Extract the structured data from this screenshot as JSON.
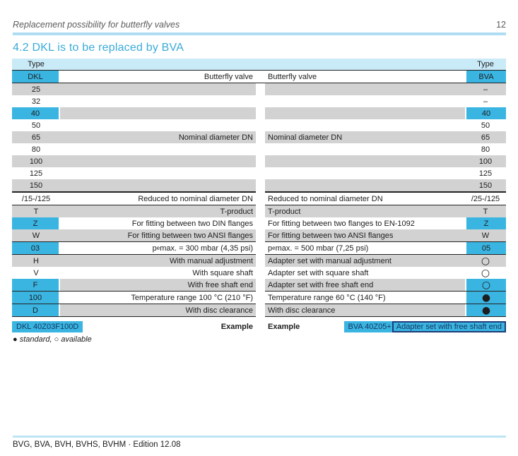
{
  "page": {
    "header_title": "Replacement possibility for butterfly valves",
    "page_number": "12",
    "section_title": "4.2 DKL is to be replaced by BVA",
    "legend": "● standard, ○ available",
    "footer": "BVG, BVA, BVH, BVHS, BVHM · Edition 12.08"
  },
  "colors": {
    "accent_cyan": "#3ab5e2",
    "header_band": "#c9eaf7",
    "row_gray": "#d2d2d2",
    "divider_blue": "#aedcf2",
    "navy": "#1f3c78",
    "title_cyan": "#39abda"
  },
  "table": {
    "left_header": "Type",
    "right_header": "Type",
    "head": {
      "left_type": "DKL",
      "left_desc": "Butterfly valve",
      "right_desc": "Butterfly valve",
      "right_type": "BVA"
    },
    "rows": [
      {
        "left_type": "25",
        "left_desc": "",
        "right_desc": "",
        "right_type": "–",
        "shade": "gray"
      },
      {
        "left_type": "32",
        "left_desc": "",
        "right_desc": "",
        "right_type": "–",
        "shade": "white"
      },
      {
        "left_type": "40",
        "left_desc": "",
        "right_desc": "",
        "right_type": "40",
        "shade": "gray",
        "left_cyan": true,
        "right_cyan": true
      },
      {
        "left_type": "50",
        "left_desc": "",
        "right_desc": "",
        "right_type": "50",
        "shade": "white"
      },
      {
        "left_type": "65",
        "left_desc": "Nominal diameter DN",
        "right_desc": "Nominal diameter DN",
        "right_type": "65",
        "shade": "gray"
      },
      {
        "left_type": "80",
        "left_desc": "",
        "right_desc": "",
        "right_type": "80",
        "shade": "white"
      },
      {
        "left_type": "100",
        "left_desc": "",
        "right_desc": "",
        "right_type": "100",
        "shade": "gray"
      },
      {
        "left_type": "125",
        "left_desc": "",
        "right_desc": "",
        "right_type": "125",
        "shade": "white"
      },
      {
        "left_type": "150",
        "left_desc": "",
        "right_desc": "",
        "right_type": "150",
        "shade": "gray"
      },
      {
        "left_type": "/15-/125",
        "left_desc": "Reduced to nominal diameter DN",
        "right_desc": "Reduced to nominal diameter DN",
        "right_type": "/25-/125",
        "shade": "white",
        "rule": "thick"
      },
      {
        "left_type": "T",
        "left_desc": "T-product",
        "right_desc": "T-product",
        "right_type": "T",
        "shade": "gray",
        "rule": "thin"
      },
      {
        "left_type": "Z",
        "left_desc": "For fitting between two DIN flanges",
        "right_desc": "For fitting between two flanges to EN-1092",
        "right_type": "Z",
        "shade": "white",
        "left_cyan": true,
        "right_cyan": true
      },
      {
        "left_type": "W",
        "left_desc": "For fitting between two ANSI flanges",
        "right_desc": "For fitting between two ANSI flanges",
        "right_type": "W",
        "shade": "gray"
      },
      {
        "left_type": "03",
        "left_desc": "p_e max. = 300 mbar (4,35 psi)",
        "right_desc": "p_e max. = 500 mbar (7,25 psi)",
        "right_type": "05",
        "shade": "white",
        "left_cyan": true,
        "right_cyan": true,
        "rule": "thin"
      },
      {
        "left_type": "H",
        "left_desc": "With manual adjustment",
        "right_desc": "Adapter set with manual adjustment",
        "right_type": "○",
        "symbol": true,
        "shade": "gray",
        "rule": "thin"
      },
      {
        "left_type": "V",
        "left_desc": "With square shaft",
        "right_desc": "Adapter set with square shaft",
        "right_type": "○",
        "symbol": true,
        "shade": "white"
      },
      {
        "left_type": "F",
        "left_desc": "With free shaft end",
        "right_desc": "Adapter set with free shaft end",
        "right_type": "○",
        "symbol": true,
        "shade": "gray",
        "left_cyan": true,
        "right_cyan": true
      },
      {
        "left_type": "100",
        "left_desc": "Temperature range 100 °C (210 °F)",
        "right_desc": "Temperature range 60 °C (140 °F)",
        "right_type": "●",
        "symbol": true,
        "shade": "white",
        "left_cyan": true,
        "right_cyan": true,
        "rule": "thin"
      },
      {
        "left_type": "D",
        "left_desc": "With disc clearance",
        "right_desc": "With disc clearance",
        "right_type": "●",
        "symbol": true,
        "shade": "gray",
        "left_cyan": true,
        "right_cyan": true,
        "rule": "thin"
      }
    ],
    "example": {
      "left_code": "DKL 40Z03F100D",
      "left_label": "Example",
      "right_label": "Example",
      "right_code": "BVA 40Z05+",
      "right_boxed": "Adapter set with free shaft end"
    }
  }
}
